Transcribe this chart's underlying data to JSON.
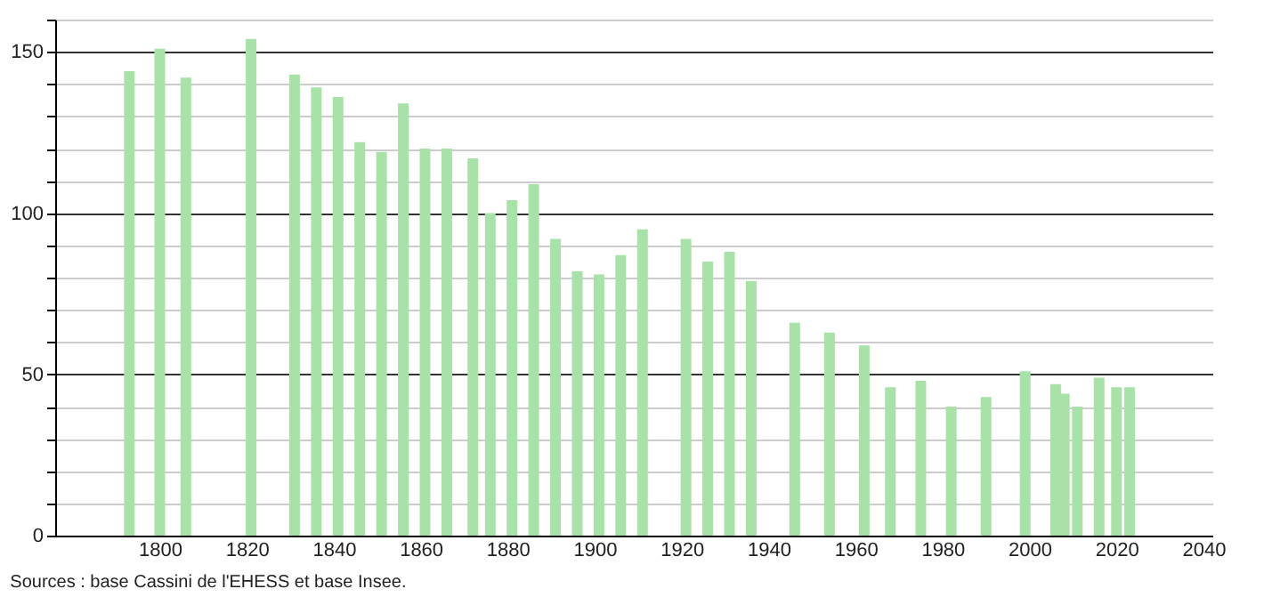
{
  "chart_data": {
    "type": "bar",
    "color": "#a8e2a8",
    "x": [
      1793,
      1800,
      1806,
      1821,
      1831,
      1836,
      1841,
      1846,
      1851,
      1856,
      1861,
      1866,
      1872,
      1876,
      1881,
      1886,
      1891,
      1896,
      1901,
      1906,
      1911,
      1921,
      1926,
      1931,
      1936,
      1946,
      1954,
      1962,
      1968,
      1975,
      1982,
      1990,
      1999,
      2006,
      2008,
      2011,
      2016,
      2020,
      2023
    ],
    "values": [
      144,
      151,
      142,
      154,
      143,
      139,
      136,
      122,
      119,
      134,
      120,
      120,
      117,
      100,
      104,
      109,
      92,
      82,
      81,
      87,
      95,
      92,
      85,
      88,
      79,
      66,
      63,
      59,
      46,
      48,
      40,
      43,
      51,
      47,
      44,
      40,
      49,
      46,
      46
    ],
    "xlim": [
      1778,
      2040
    ],
    "xticks": [
      1800,
      1820,
      1840,
      1860,
      1880,
      1900,
      1920,
      1940,
      1960,
      1980,
      2000,
      2020,
      2040
    ],
    "ylim": [
      0,
      160
    ],
    "yticks": [
      0,
      {
        "value": 10,
        "label": null
      },
      {
        "value": 20,
        "label": null
      },
      {
        "value": 30,
        "label": null
      },
      {
        "value": 40,
        "label": null
      },
      50,
      {
        "value": 60,
        "label": null
      },
      {
        "value": 70,
        "label": null
      },
      {
        "value": 80,
        "label": null
      },
      {
        "value": 90,
        "label": null
      },
      100,
      {
        "value": 110,
        "label": null
      },
      {
        "value": 120,
        "label": null
      },
      {
        "value": 130,
        "label": null
      },
      {
        "value": 140,
        "label": null
      },
      150,
      {
        "value": 160,
        "label": null
      }
    ],
    "grid": "y",
    "annotations": [
      "Sources : base Cassini de l'EHESS et base Insee."
    ]
  }
}
